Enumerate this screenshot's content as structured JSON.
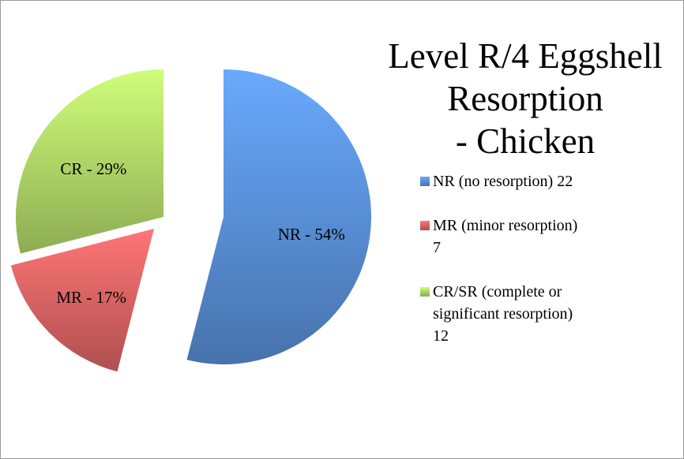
{
  "chart_data": {
    "type": "pie",
    "title": "Level R/4 Eggshell\nResorption\n- Chicken",
    "categories": [
      "NR (no resorption) 22",
      "MR (minor resorption) 7",
      "CR/SR (complete or significant resorption) 12"
    ],
    "values": [
      54,
      17,
      29
    ],
    "value_labels": [
      "NR - 54%",
      "MR - 17%",
      "CR - 29%"
    ],
    "colors": [
      "#5b93dc",
      "#e06666",
      "#b5dc6a"
    ],
    "legend": "right"
  }
}
